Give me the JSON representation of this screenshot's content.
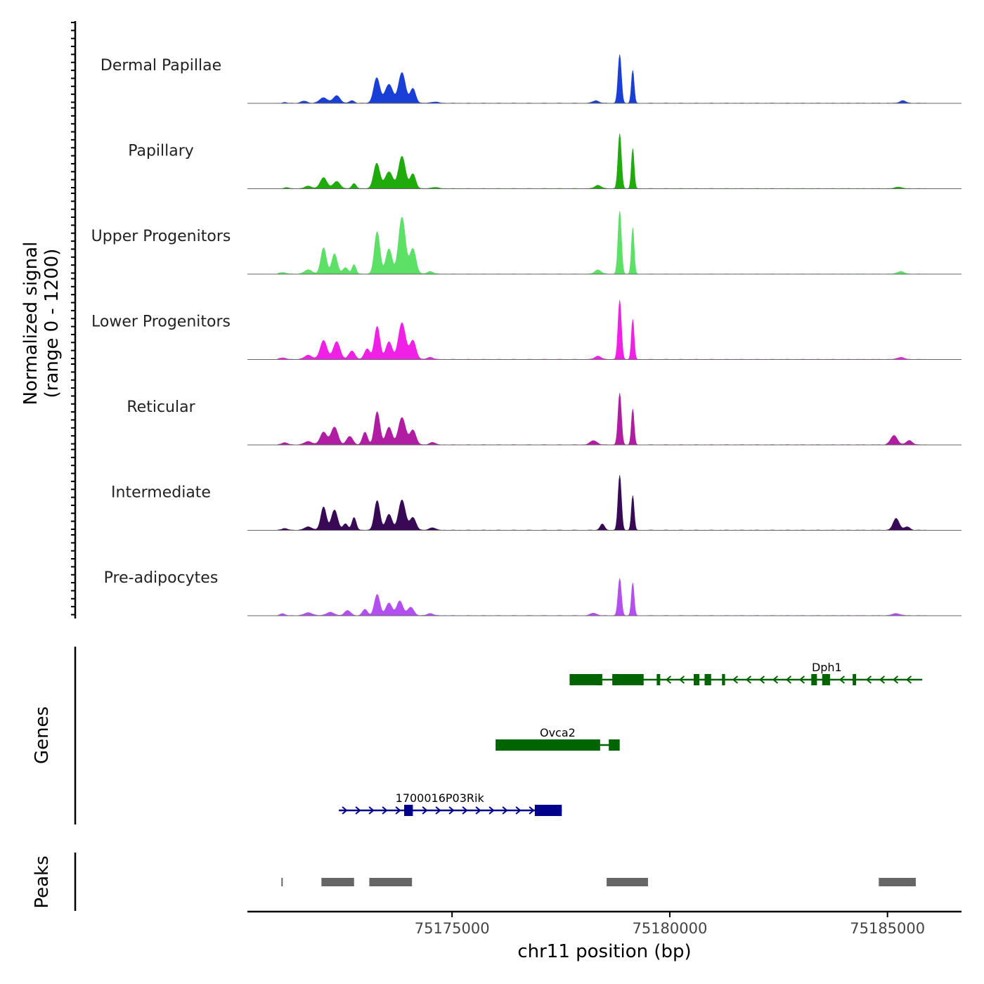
{
  "chart_data": {
    "type": "area",
    "title": "",
    "chromosome": "chr11",
    "xlabel": "chr11 position (bp)",
    "xlim": [
      75170300,
      75186700
    ],
    "x_ticks": [
      75175000,
      75180000,
      75185000
    ],
    "x_tick_labels": [
      "75175000",
      "75180000",
      "75185000"
    ],
    "ylabel_line1": "Normalized signal",
    "ylabel_line2": "(range 0 - 1200)",
    "ylim": [
      0,
      1200
    ],
    "genes_label": "Genes",
    "peaks_label": "Peaks",
    "tracks": [
      {
        "name": "Dermal Papillae",
        "color": "#1a3fd6",
        "peaks": [
          {
            "center": 75171150,
            "width": 120,
            "height": 20
          },
          {
            "center": 75171600,
            "width": 200,
            "height": 50
          },
          {
            "center": 75172050,
            "width": 260,
            "height": 130
          },
          {
            "center": 75172350,
            "width": 220,
            "height": 180
          },
          {
            "center": 75172700,
            "width": 160,
            "height": 60
          },
          {
            "center": 75173270,
            "width": 200,
            "height": 600
          },
          {
            "center": 75173550,
            "width": 250,
            "height": 450
          },
          {
            "center": 75173850,
            "width": 220,
            "height": 730
          },
          {
            "center": 75174100,
            "width": 180,
            "height": 350
          },
          {
            "center": 75174600,
            "width": 250,
            "height": 30
          },
          {
            "center": 75178300,
            "width": 200,
            "height": 60
          },
          {
            "center": 75178850,
            "width": 110,
            "height": 1150
          },
          {
            "center": 75179150,
            "width": 90,
            "height": 780
          },
          {
            "center": 75185350,
            "width": 200,
            "height": 60
          }
        ]
      },
      {
        "name": "Papillary",
        "color": "#1fab0c",
        "peaks": [
          {
            "center": 75171200,
            "width": 150,
            "height": 25
          },
          {
            "center": 75171700,
            "width": 220,
            "height": 60
          },
          {
            "center": 75172050,
            "width": 220,
            "height": 260
          },
          {
            "center": 75172350,
            "width": 220,
            "height": 170
          },
          {
            "center": 75172750,
            "width": 140,
            "height": 120
          },
          {
            "center": 75173270,
            "width": 200,
            "height": 600
          },
          {
            "center": 75173550,
            "width": 250,
            "height": 400
          },
          {
            "center": 75173850,
            "width": 220,
            "height": 770
          },
          {
            "center": 75174100,
            "width": 180,
            "height": 350
          },
          {
            "center": 75174600,
            "width": 220,
            "height": 30
          },
          {
            "center": 75178350,
            "width": 200,
            "height": 80
          },
          {
            "center": 75178850,
            "width": 110,
            "height": 1300
          },
          {
            "center": 75179150,
            "width": 90,
            "height": 950
          },
          {
            "center": 75185250,
            "width": 200,
            "height": 40
          }
        ]
      },
      {
        "name": "Upper Progenitors",
        "color": "#5ce066",
        "peaks": [
          {
            "center": 75171100,
            "width": 200,
            "height": 40
          },
          {
            "center": 75171700,
            "width": 250,
            "height": 100
          },
          {
            "center": 75172050,
            "width": 180,
            "height": 620
          },
          {
            "center": 75172300,
            "width": 180,
            "height": 480
          },
          {
            "center": 75172550,
            "width": 180,
            "height": 150
          },
          {
            "center": 75172750,
            "width": 130,
            "height": 220
          },
          {
            "center": 75173280,
            "width": 180,
            "height": 1000
          },
          {
            "center": 75173550,
            "width": 200,
            "height": 600
          },
          {
            "center": 75173850,
            "width": 220,
            "height": 1350
          },
          {
            "center": 75174100,
            "width": 200,
            "height": 600
          },
          {
            "center": 75174500,
            "width": 200,
            "height": 60
          },
          {
            "center": 75178350,
            "width": 200,
            "height": 100
          },
          {
            "center": 75178850,
            "width": 110,
            "height": 1500
          },
          {
            "center": 75179150,
            "width": 90,
            "height": 1100
          },
          {
            "center": 75185300,
            "width": 220,
            "height": 60
          }
        ]
      },
      {
        "name": "Lower Progenitors",
        "color": "#f020e6",
        "peaks": [
          {
            "center": 75171100,
            "width": 200,
            "height": 40
          },
          {
            "center": 75171700,
            "width": 250,
            "height": 100
          },
          {
            "center": 75172050,
            "width": 220,
            "height": 450
          },
          {
            "center": 75172350,
            "width": 220,
            "height": 420
          },
          {
            "center": 75172700,
            "width": 200,
            "height": 200
          },
          {
            "center": 75173050,
            "width": 180,
            "height": 250
          },
          {
            "center": 75173280,
            "width": 180,
            "height": 780
          },
          {
            "center": 75173550,
            "width": 200,
            "height": 420
          },
          {
            "center": 75173850,
            "width": 230,
            "height": 870
          },
          {
            "center": 75174100,
            "width": 200,
            "height": 450
          },
          {
            "center": 75174500,
            "width": 200,
            "height": 50
          },
          {
            "center": 75178350,
            "width": 200,
            "height": 80
          },
          {
            "center": 75178850,
            "width": 110,
            "height": 1400
          },
          {
            "center": 75179150,
            "width": 90,
            "height": 950
          },
          {
            "center": 75185300,
            "width": 220,
            "height": 50
          }
        ]
      },
      {
        "name": "Reticular",
        "color": "#b01ca2",
        "peaks": [
          {
            "center": 75171150,
            "width": 200,
            "height": 50
          },
          {
            "center": 75171700,
            "width": 250,
            "height": 80
          },
          {
            "center": 75172050,
            "width": 220,
            "height": 300
          },
          {
            "center": 75172300,
            "width": 220,
            "height": 420
          },
          {
            "center": 75172650,
            "width": 200,
            "height": 200
          },
          {
            "center": 75173000,
            "width": 160,
            "height": 300
          },
          {
            "center": 75173280,
            "width": 180,
            "height": 780
          },
          {
            "center": 75173550,
            "width": 200,
            "height": 420
          },
          {
            "center": 75173850,
            "width": 230,
            "height": 650
          },
          {
            "center": 75174100,
            "width": 200,
            "height": 350
          },
          {
            "center": 75174550,
            "width": 180,
            "height": 60
          },
          {
            "center": 75178250,
            "width": 220,
            "height": 100
          },
          {
            "center": 75178850,
            "width": 110,
            "height": 1220
          },
          {
            "center": 75179150,
            "width": 90,
            "height": 850
          },
          {
            "center": 75185150,
            "width": 220,
            "height": 220
          },
          {
            "center": 75185500,
            "width": 200,
            "height": 100
          }
        ]
      },
      {
        "name": "Intermediate",
        "color": "#380a56",
        "peaks": [
          {
            "center": 75171150,
            "width": 200,
            "height": 40
          },
          {
            "center": 75171700,
            "width": 250,
            "height": 80
          },
          {
            "center": 75172050,
            "width": 180,
            "height": 550
          },
          {
            "center": 75172300,
            "width": 200,
            "height": 480
          },
          {
            "center": 75172550,
            "width": 160,
            "height": 150
          },
          {
            "center": 75172750,
            "width": 140,
            "height": 300
          },
          {
            "center": 75173280,
            "width": 180,
            "height": 700
          },
          {
            "center": 75173550,
            "width": 200,
            "height": 380
          },
          {
            "center": 75173850,
            "width": 220,
            "height": 720
          },
          {
            "center": 75174100,
            "width": 200,
            "height": 300
          },
          {
            "center": 75174550,
            "width": 200,
            "height": 60
          },
          {
            "center": 75178450,
            "width": 140,
            "height": 150
          },
          {
            "center": 75178850,
            "width": 110,
            "height": 1300
          },
          {
            "center": 75179150,
            "width": 90,
            "height": 820
          },
          {
            "center": 75185200,
            "width": 200,
            "height": 280
          },
          {
            "center": 75185450,
            "width": 180,
            "height": 80
          }
        ]
      },
      {
        "name": "Pre-adipocytes",
        "color": "#b34ff0",
        "peaks": [
          {
            "center": 75171100,
            "width": 150,
            "height": 50
          },
          {
            "center": 75171700,
            "width": 260,
            "height": 70
          },
          {
            "center": 75172200,
            "width": 250,
            "height": 80
          },
          {
            "center": 75172600,
            "width": 200,
            "height": 120
          },
          {
            "center": 75173000,
            "width": 160,
            "height": 150
          },
          {
            "center": 75173280,
            "width": 180,
            "height": 500
          },
          {
            "center": 75173550,
            "width": 200,
            "height": 300
          },
          {
            "center": 75173800,
            "width": 200,
            "height": 350
          },
          {
            "center": 75174050,
            "width": 200,
            "height": 200
          },
          {
            "center": 75174500,
            "width": 200,
            "height": 50
          },
          {
            "center": 75178250,
            "width": 200,
            "height": 60
          },
          {
            "center": 75178850,
            "width": 110,
            "height": 880
          },
          {
            "center": 75179150,
            "width": 90,
            "height": 780
          },
          {
            "center": 75185200,
            "width": 250,
            "height": 50
          }
        ]
      }
    ],
    "genes": [
      {
        "name": "Dph1",
        "strand": "-",
        "color": "#006400",
        "start": 75177700,
        "end": 75185800,
        "exons": [
          [
            75177700,
            75178450
          ],
          [
            75178680,
            75179400
          ],
          [
            75179700,
            75179780
          ],
          [
            75180550,
            75180680
          ],
          [
            75180800,
            75180950
          ],
          [
            75181200,
            75181270
          ],
          [
            75183250,
            75183380
          ],
          [
            75183500,
            75183680
          ],
          [
            75184200,
            75184280
          ]
        ]
      },
      {
        "name": "Ovca2",
        "strand": "-",
        "color": "#006400",
        "start": 75176000,
        "end": 75178850,
        "exons": [
          [
            75176000,
            75178400
          ],
          [
            75178600,
            75178850
          ]
        ]
      },
      {
        "name": "1700016P03Rik",
        "strand": "+",
        "color": "#00008b",
        "start": 75172400,
        "end": 75177520,
        "exons": [
          [
            75173900,
            75174100
          ],
          [
            75176900,
            75177520
          ]
        ]
      }
    ],
    "peak_regions": [
      [
        75171080,
        75171110
      ],
      [
        75172000,
        75172750
      ],
      [
        75173100,
        75174080
      ],
      [
        75178550,
        75179500
      ],
      [
        75184800,
        75185650
      ]
    ]
  }
}
